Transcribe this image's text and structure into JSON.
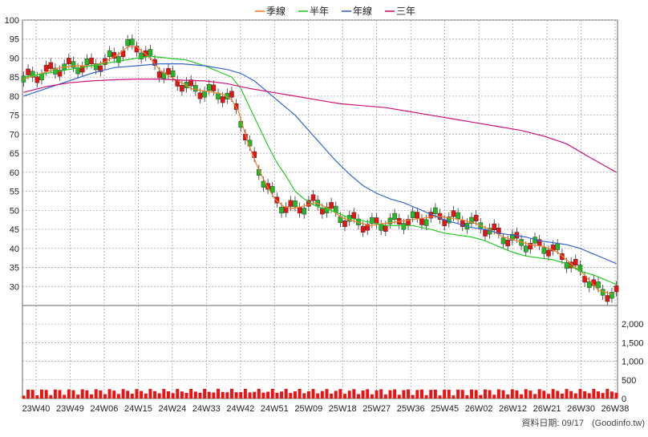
{
  "chart_data": [
    {
      "type": "candlestick",
      "legend": [
        {
          "name": "季線",
          "color": "#f07f2a"
        },
        {
          "name": "半年",
          "color": "#22cc22"
        },
        {
          "name": "年線",
          "color": "#3366cc"
        },
        {
          "name": "三年",
          "color": "#cc1177"
        }
      ],
      "legend_position": "top-center",
      "grid": true,
      "ylim": [
        25,
        100
      ],
      "yticks": [
        30,
        35,
        40,
        45,
        50,
        55,
        60,
        65,
        70,
        75,
        80,
        85,
        90,
        95,
        100
      ],
      "xticks": [
        "23W40",
        "23W49",
        "24W06",
        "24W15",
        "24W24",
        "24W33",
        "24W42",
        "24W51",
        "25W09",
        "25W18",
        "25W27",
        "25W36",
        "25W45",
        "26W02",
        "26W12",
        "26W21",
        "26W30",
        "26W38"
      ],
      "up_color": "#ee1111",
      "down_color": "#22bb22",
      "series": [
        {
          "name": "季線",
          "color": "#f07f2a",
          "values": [
            [
              0,
              84.5
            ],
            [
              8,
              86
            ],
            [
              16,
              87.5
            ],
            [
              24,
              88
            ],
            [
              30,
              88
            ],
            [
              36,
              89
            ],
            [
              42,
              91
            ],
            [
              46,
              93
            ],
            [
              50,
              93
            ],
            [
              56,
              90
            ],
            [
              60,
              87
            ],
            [
              65,
              85
            ],
            [
              70,
              83.5
            ],
            [
              74,
              82
            ],
            [
              78,
              81.5
            ],
            [
              84,
              81
            ],
            [
              88,
              80.5
            ],
            [
              92,
              79
            ],
            [
              95,
              76
            ],
            [
              99,
              68
            ],
            [
              103,
              62
            ],
            [
              107,
              57
            ],
            [
              111,
              53
            ],
            [
              115,
              51
            ],
            [
              119,
              50.5
            ],
            [
              123,
              51
            ],
            [
              129,
              52
            ],
            [
              135,
              50.5
            ],
            [
              141,
              48
            ],
            [
              147,
              47
            ],
            [
              153,
              46
            ],
            [
              159,
              46.5
            ],
            [
              165,
              47
            ],
            [
              171,
              47.5
            ],
            [
              177,
              48
            ],
            [
              183,
              48.5
            ],
            [
              188,
              48
            ],
            [
              194,
              47.5
            ],
            [
              200,
              46.5
            ],
            [
              206,
              45
            ],
            [
              212,
              43
            ],
            [
              218,
              42
            ],
            [
              224,
              41
            ],
            [
              230,
              40.5
            ],
            [
              236,
              39
            ],
            [
              242,
              36
            ],
            [
              248,
              33
            ],
            [
              254,
              29
            ],
            [
              260,
              28
            ]
          ]
        },
        {
          "name": "半年",
          "color": "#22cc22",
          "values": [
            [
              0,
              85
            ],
            [
              10,
              86
            ],
            [
              20,
              87
            ],
            [
              30,
              88
            ],
            [
              40,
              89
            ],
            [
              50,
              90
            ],
            [
              56,
              90.5
            ],
            [
              64,
              90
            ],
            [
              72,
              89.5
            ],
            [
              80,
              88
            ],
            [
              88,
              86
            ],
            [
              92,
              85
            ],
            [
              96,
              82
            ],
            [
              100,
              77
            ],
            [
              104,
              72
            ],
            [
              108,
              67
            ],
            [
              112,
              62.5
            ],
            [
              116,
              59
            ],
            [
              120,
              55
            ],
            [
              124,
              53
            ],
            [
              128,
              51.5
            ],
            [
              132,
              50.5
            ],
            [
              136,
              50
            ],
            [
              140,
              49
            ],
            [
              144,
              48
            ],
            [
              148,
              47.5
            ],
            [
              152,
              47
            ],
            [
              156,
              46.5
            ],
            [
              160,
              46
            ],
            [
              166,
              46
            ],
            [
              172,
              46
            ],
            [
              176,
              45.5
            ],
            [
              180,
              45
            ],
            [
              186,
              44
            ],
            [
              192,
              43.5
            ],
            [
              198,
              43
            ],
            [
              204,
              42
            ],
            [
              210,
              40.5
            ],
            [
              216,
              39
            ],
            [
              222,
              38
            ],
            [
              228,
              37.5
            ],
            [
              234,
              37
            ],
            [
              240,
              36
            ],
            [
              246,
              34
            ],
            [
              252,
              33
            ],
            [
              258,
              31.5
            ],
            [
              262,
              30.5
            ]
          ]
        },
        {
          "name": "年線",
          "color": "#3366cc",
          "values": [
            [
              0,
              80
            ],
            [
              10,
              82
            ],
            [
              20,
              84
            ],
            [
              30,
              86
            ],
            [
              40,
              87.5
            ],
            [
              50,
              88
            ],
            [
              60,
              88.5
            ],
            [
              70,
              88.5
            ],
            [
              80,
              88
            ],
            [
              90,
              87
            ],
            [
              96,
              86
            ],
            [
              102,
              84
            ],
            [
              108,
              81
            ],
            [
              114,
              78
            ],
            [
              120,
              75
            ],
            [
              126,
              71
            ],
            [
              132,
              67
            ],
            [
              138,
              63
            ],
            [
              144,
              59.5
            ],
            [
              150,
              56.5
            ],
            [
              156,
              54.5
            ],
            [
              162,
              53
            ],
            [
              168,
              52
            ],
            [
              174,
              50.5
            ],
            [
              180,
              49
            ],
            [
              186,
              47.5
            ],
            [
              192,
              46.5
            ],
            [
              198,
              45.5
            ],
            [
              204,
              45
            ],
            [
              210,
              44
            ],
            [
              216,
              43.5
            ],
            [
              222,
              43
            ],
            [
              228,
              42
            ],
            [
              234,
              41.5
            ],
            [
              240,
              41
            ],
            [
              246,
              40
            ],
            [
              252,
              38.5
            ],
            [
              258,
              37
            ],
            [
              262,
              36
            ]
          ]
        },
        {
          "name": "三年",
          "color": "#cc1177",
          "values": [
            [
              0,
              81
            ],
            [
              10,
              82.5
            ],
            [
              20,
              83.5
            ],
            [
              30,
              84
            ],
            [
              40,
              84.3
            ],
            [
              50,
              84.5
            ],
            [
              60,
              84.5
            ],
            [
              70,
              84.2
            ],
            [
              80,
              84
            ],
            [
              90,
              83.3
            ],
            [
              100,
              82
            ],
            [
              110,
              81
            ],
            [
              120,
              80
            ],
            [
              130,
              79
            ],
            [
              140,
              78
            ],
            [
              150,
              77.5
            ],
            [
              160,
              77
            ],
            [
              170,
              76
            ],
            [
              180,
              75
            ],
            [
              190,
              74
            ],
            [
              200,
              73
            ],
            [
              210,
              72
            ],
            [
              220,
              71
            ],
            [
              230,
              69.5
            ],
            [
              240,
              67.5
            ],
            [
              250,
              64
            ],
            [
              256,
              62
            ],
            [
              262,
              60
            ]
          ]
        }
      ]
    },
    {
      "type": "bar",
      "ylim": [
        0,
        2500
      ],
      "yticks": [
        0,
        500,
        1000,
        1500,
        2000
      ],
      "ytick_labels": [
        "0",
        "500",
        "1,000",
        "1,500",
        "2,000"
      ]
    }
  ],
  "footer": {
    "date_label": "資料日期: 09/17",
    "source": "(Goodinfo.tw)"
  }
}
